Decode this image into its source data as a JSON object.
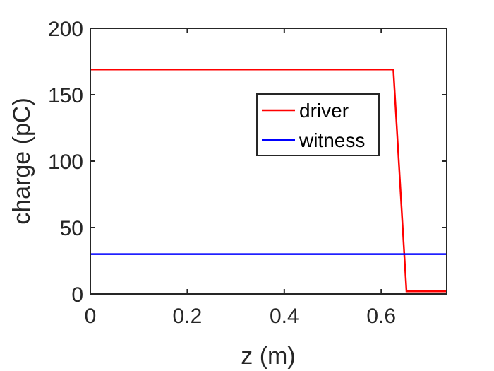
{
  "chart_data": {
    "type": "line",
    "xlabel": "z (m)",
    "ylabel": "charge (pC)",
    "xlim": [
      0,
      0.735
    ],
    "ylim": [
      0,
      200
    ],
    "xticks": [
      0,
      0.2,
      0.4,
      0.6
    ],
    "xtick_labels": [
      "0",
      "0.2",
      "0.4",
      "0.6"
    ],
    "yticks": [
      0,
      50,
      100,
      150,
      200
    ],
    "ytick_labels": [
      "0",
      "50",
      "100",
      "150",
      "200"
    ],
    "grid": false,
    "legend_position": "upper-right",
    "series": [
      {
        "name": "driver",
        "color": "#ff0000",
        "x": [
          0,
          0.625,
          0.652,
          0.735
        ],
        "y": [
          169,
          169,
          2,
          2
        ]
      },
      {
        "name": "witness",
        "color": "#0000ff",
        "x": [
          0,
          0.735
        ],
        "y": [
          30,
          30
        ]
      }
    ]
  }
}
